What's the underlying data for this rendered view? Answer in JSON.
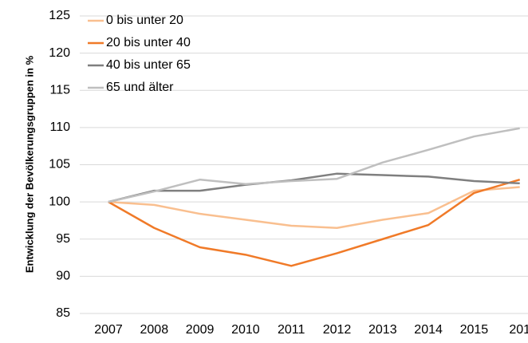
{
  "chart_data": {
    "type": "line",
    "ylabel": "Entwicklung der Bevölkerungsgruppen in %",
    "categories": [
      "2007",
      "2008",
      "2009",
      "2010",
      "2011",
      "2012",
      "2013",
      "2014",
      "2015",
      "201"
    ],
    "series": [
      {
        "name": "0 bis unter 20",
        "color": "#f9bf8f",
        "values": [
          100,
          99.6,
          98.4,
          97.6,
          96.8,
          96.5,
          97.6,
          98.5,
          101.5,
          102.0
        ]
      },
      {
        "name": "20 bis unter 40",
        "color": "#f07a28",
        "values": [
          100,
          96.5,
          93.9,
          92.9,
          91.4,
          93.1,
          95.0,
          96.9,
          101.2,
          103.0
        ]
      },
      {
        "name": "40 bis unter 65",
        "color": "#7f7f7f",
        "values": [
          100,
          101.5,
          101.5,
          102.3,
          102.9,
          103.8,
          103.6,
          103.4,
          102.8,
          102.5
        ]
      },
      {
        "name": "65 und älter",
        "color": "#bfbfbf",
        "values": [
          100,
          101.4,
          103.0,
          102.4,
          102.8,
          103.1,
          105.3,
          107.0,
          108.8,
          109.9
        ]
      }
    ],
    "ylim": [
      85,
      125
    ],
    "yticks": [
      85,
      90,
      95,
      100,
      105,
      110,
      115,
      120,
      125
    ],
    "grid": true,
    "legend": "top-left"
  }
}
